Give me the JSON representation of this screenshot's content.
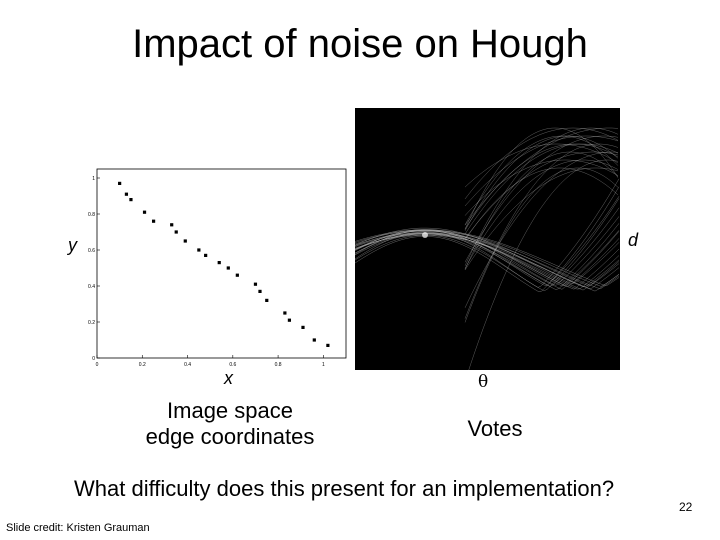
{
  "slide": {
    "title": "Impact of noise on Hough",
    "caption_left_line1": "Image space",
    "caption_left_line2": "edge coordinates",
    "caption_right": "Votes",
    "question": "What difficulty does this present for an implementation?",
    "credit": "Slide credit: Kristen Grauman",
    "page_number": "22"
  },
  "axis_labels": {
    "image_y": "y",
    "image_x": "x",
    "votes_vertical": "d",
    "votes_horizontal": "θ"
  },
  "chart_data": {
    "type": "scatter",
    "xlim": [
      0,
      1.1
    ],
    "ylim": [
      0,
      1.05
    ],
    "x_ticks": [
      "0",
      "0.2",
      "0.4",
      "0.6",
      "0.8",
      "1"
    ],
    "y_ticks": [
      "0",
      "0.2",
      "0.4",
      "0.6",
      "0.8",
      "1"
    ],
    "points": [
      [
        0.1,
        0.97
      ],
      [
        0.13,
        0.91
      ],
      [
        0.15,
        0.88
      ],
      [
        0.21,
        0.81
      ],
      [
        0.25,
        0.76
      ],
      [
        0.33,
        0.74
      ],
      [
        0.35,
        0.7
      ],
      [
        0.39,
        0.65
      ],
      [
        0.45,
        0.6
      ],
      [
        0.48,
        0.57
      ],
      [
        0.54,
        0.53
      ],
      [
        0.58,
        0.5
      ],
      [
        0.62,
        0.46
      ],
      [
        0.7,
        0.41
      ],
      [
        0.72,
        0.37
      ],
      [
        0.75,
        0.32
      ],
      [
        0.83,
        0.25
      ],
      [
        0.85,
        0.21
      ],
      [
        0.91,
        0.17
      ],
      [
        0.96,
        0.1
      ],
      [
        1.02,
        0.07
      ]
    ]
  },
  "votes_image": {
    "background": "#000000",
    "curve_color": "#bdbdbd"
  }
}
